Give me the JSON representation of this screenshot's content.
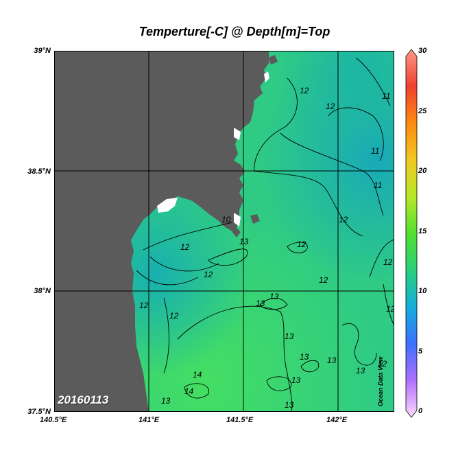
{
  "title": "Temperture[-C] @ Depth[m]=Top",
  "date_stamp": "20160113",
  "watermark": "Ocean Data View",
  "lat_ticks": [
    "39°N",
    "38.5°N",
    "38°N",
    "37.5°N"
  ],
  "lon_ticks": [
    "140.5°E",
    "141°E",
    "141.5°E",
    "142°E"
  ],
  "colorbar": {
    "ticks": [
      "30",
      "25",
      "20",
      "15",
      "10",
      "5",
      "0"
    ],
    "min": 0,
    "max": 30,
    "colors": [
      "#ffd8ff",
      "#b070ff",
      "#3c70ff",
      "#14aedc",
      "#28d07a",
      "#52e030",
      "#b8e826",
      "#f0c820",
      "#ff8a10",
      "#f04030",
      "#ff9a8a"
    ]
  },
  "contour_labels": [
    "12",
    "12",
    "11",
    "11",
    "11",
    "12",
    "12",
    "10",
    "13",
    "12",
    "12",
    "12",
    "12",
    "12",
    "13",
    "13",
    "12",
    "13",
    "12",
    "13",
    "13",
    "13",
    "12",
    "14",
    "14",
    "13",
    "13",
    "13"
  ],
  "colors": {
    "land": "#5b5b5b",
    "sea_cool": "#1eb4ab",
    "sea_mid": "#2cc98a",
    "sea_warm": "#3ed86a"
  }
}
